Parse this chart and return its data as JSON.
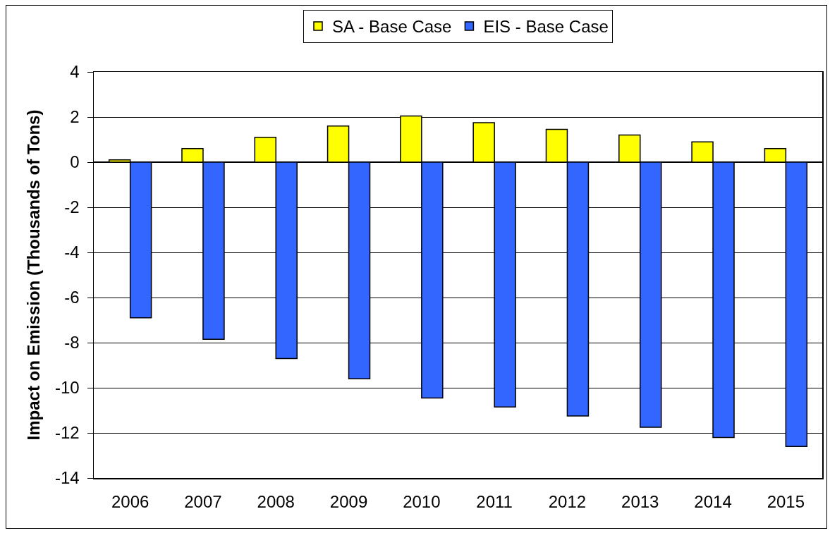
{
  "chart_data": {
    "type": "bar",
    "ylabel": "Impact on Emission (Thousands of Tons)",
    "categories": [
      "2006",
      "2007",
      "2008",
      "2009",
      "2010",
      "2011",
      "2012",
      "2013",
      "2014",
      "2015"
    ],
    "series": [
      {
        "name": "SA - Base Case",
        "color": "#ffff00",
        "values": [
          0.1,
          0.6,
          1.1,
          1.6,
          2.05,
          1.75,
          1.45,
          1.2,
          0.9,
          0.6
        ]
      },
      {
        "name": "EIS - Base Case",
        "color": "#3366ff",
        "values": [
          -6.9,
          -7.85,
          -8.7,
          -9.6,
          -10.45,
          -10.85,
          -11.25,
          -11.75,
          -12.2,
          -12.6
        ]
      }
    ],
    "ylim": [
      -14,
      4
    ],
    "yticks": [
      -14,
      -12,
      -10,
      -8,
      -6,
      -4,
      -2,
      0,
      2,
      4
    ],
    "grid": "y",
    "legend": "top"
  }
}
